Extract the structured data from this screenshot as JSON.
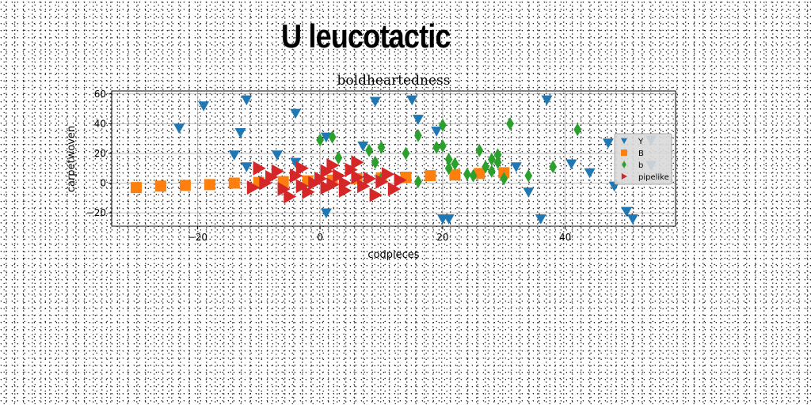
{
  "page": {
    "title": "U leucotactic"
  },
  "chart_data": {
    "type": "scatter",
    "title": "boldheartedness",
    "xlabel": "codpieces",
    "ylabel": "carpetwoven",
    "xlim": [
      -34,
      58
    ],
    "ylim": [
      -29,
      62
    ],
    "xticks": [
      -20,
      0,
      20,
      40
    ],
    "yticks": [
      -20,
      0,
      20,
      40,
      60
    ],
    "grid": true,
    "legend_position": "right",
    "colors": {
      "Y": "#1f77b4",
      "B": "#ff7f0e",
      "b": "#2ca02c",
      "pipelike": "#d62728"
    },
    "series": [
      {
        "name": "Y",
        "marker": "triangle-down",
        "points": [
          [
            -23,
            37
          ],
          [
            -19,
            52
          ],
          [
            -12,
            56
          ],
          [
            -13,
            34
          ],
          [
            -14,
            19
          ],
          [
            -12,
            11
          ],
          [
            -7,
            19
          ],
          [
            -4,
            47
          ],
          [
            -4,
            14
          ],
          [
            1,
            31
          ],
          [
            1,
            -20
          ],
          [
            7,
            25
          ],
          [
            9,
            55
          ],
          [
            15,
            56
          ],
          [
            16,
            43
          ],
          [
            19,
            35
          ],
          [
            20,
            -24
          ],
          [
            21,
            -24
          ],
          [
            32,
            11
          ],
          [
            34,
            -6
          ],
          [
            36,
            -24
          ],
          [
            37,
            56
          ],
          [
            41,
            13
          ],
          [
            44,
            7
          ],
          [
            47,
            27
          ],
          [
            48,
            -2
          ],
          [
            50,
            -19
          ],
          [
            51,
            -24
          ],
          [
            54,
            29
          ],
          [
            54,
            12
          ]
        ]
      },
      {
        "name": "B",
        "marker": "square",
        "points": [
          [
            -30,
            -3
          ],
          [
            -26,
            -2
          ],
          [
            -22,
            -1.5
          ],
          [
            -18,
            -1
          ],
          [
            -14,
            0
          ],
          [
            -10,
            0.5
          ],
          [
            -6,
            1
          ],
          [
            -2,
            1.5
          ],
          [
            2,
            2
          ],
          [
            6,
            3
          ],
          [
            10,
            3.5
          ],
          [
            14,
            4
          ],
          [
            18,
            5
          ],
          [
            22,
            5.5
          ],
          [
            26,
            6.5
          ],
          [
            30,
            7
          ]
        ]
      },
      {
        "name": "b",
        "marker": "diamond",
        "points": [
          [
            0,
            29
          ],
          [
            2,
            31
          ],
          [
            3,
            17
          ],
          [
            8,
            22
          ],
          [
            9,
            14
          ],
          [
            10,
            24
          ],
          [
            10,
            3
          ],
          [
            14,
            20
          ],
          [
            16,
            32
          ],
          [
            16,
            1
          ],
          [
            19,
            24
          ],
          [
            20,
            25
          ],
          [
            20,
            39
          ],
          [
            21,
            16
          ],
          [
            21,
            10
          ],
          [
            22,
            13
          ],
          [
            24,
            6
          ],
          [
            25,
            5
          ],
          [
            26,
            22
          ],
          [
            27,
            11
          ],
          [
            28,
            16
          ],
          [
            28,
            8
          ],
          [
            29,
            19
          ],
          [
            29,
            14
          ],
          [
            30,
            3
          ],
          [
            31,
            40
          ],
          [
            34,
            5
          ],
          [
            38,
            11
          ],
          [
            42,
            36
          ]
        ]
      },
      {
        "name": "pipelike",
        "marker": "triangle-right",
        "points": [
          [
            -10,
            10
          ],
          [
            -8,
            4
          ],
          [
            -9,
            0
          ],
          [
            -7,
            8
          ],
          [
            -6,
            -4
          ],
          [
            -5,
            -9
          ],
          [
            -4,
            5
          ],
          [
            -3,
            -2
          ],
          [
            -2,
            -6
          ],
          [
            -1,
            0
          ],
          [
            0,
            3
          ],
          [
            1,
            -3
          ],
          [
            1,
            8
          ],
          [
            2,
            12
          ],
          [
            3,
            5
          ],
          [
            4,
            0
          ],
          [
            5,
            9
          ],
          [
            6,
            14
          ],
          [
            7,
            -2
          ],
          [
            8,
            3
          ],
          [
            9,
            -8
          ],
          [
            10,
            1
          ],
          [
            11,
            6
          ],
          [
            12,
            -4
          ],
          [
            13,
            2
          ],
          [
            -11,
            -3
          ],
          [
            -3,
            10
          ],
          [
            4,
            -5
          ],
          [
            6,
            4
          ],
          [
            2,
            -1
          ]
        ]
      }
    ]
  }
}
